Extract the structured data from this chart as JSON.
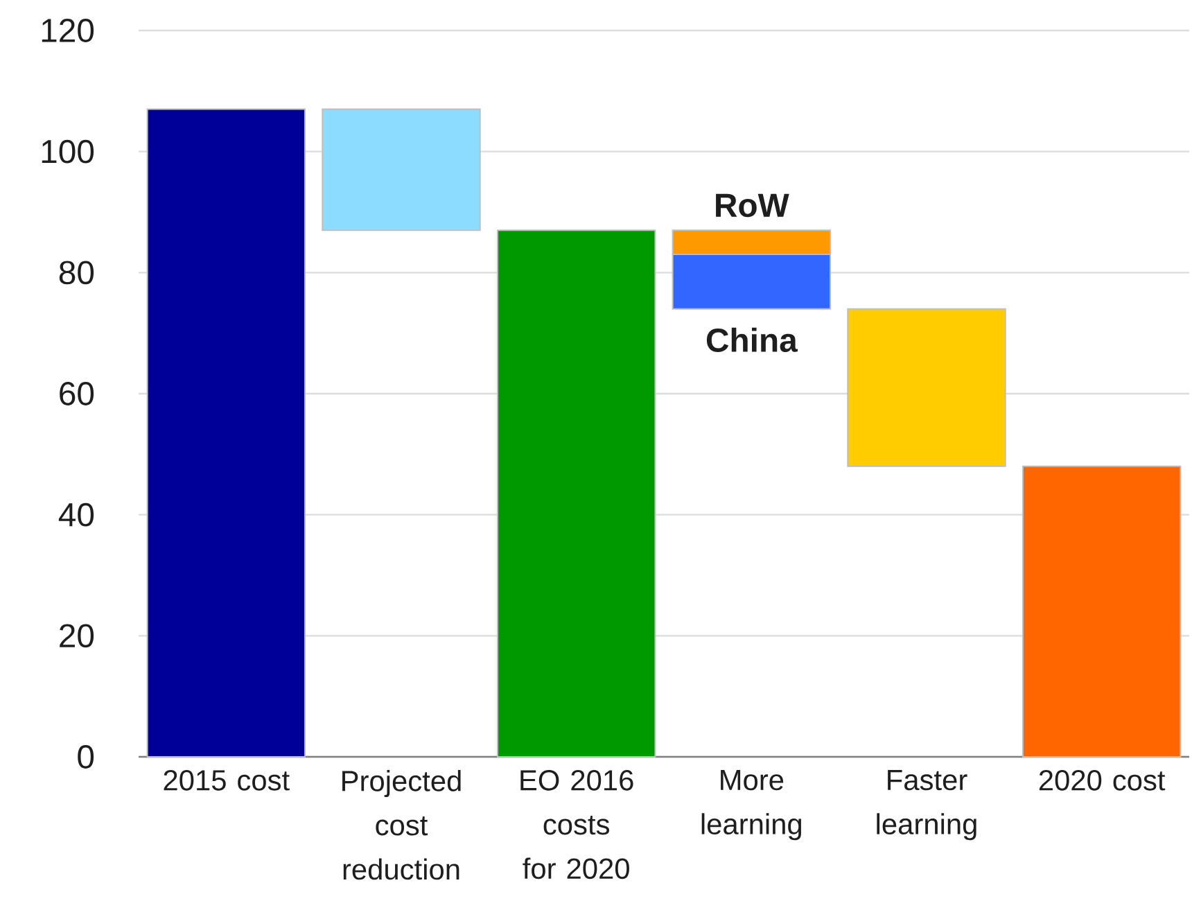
{
  "chart_data": {
    "type": "bar",
    "stacked": true,
    "categories": [
      "2015 cost",
      "Projected cost reduction",
      "EO 2016 costs for 2020",
      "More learning",
      "Faster learning",
      "2020 cost"
    ],
    "series": [
      {
        "values": [
          107,
          20,
          87,
          9,
          26,
          48
        ],
        "base": [
          0,
          87,
          0,
          74,
          48,
          0
        ],
        "colors": [
          "#000099",
          "#8bdcff",
          "#009900",
          "#3366ff",
          "#ffcc00",
          "#ff6600"
        ]
      },
      {
        "values": [
          null,
          null,
          null,
          4,
          null,
          null
        ],
        "color": "#ff9900"
      }
    ],
    "annotations": [
      {
        "text": "RoW",
        "x": "More learning",
        "y": 87
      },
      {
        "text": "China",
        "x": "More learning",
        "y": 74
      }
    ],
    "ylim": [
      0,
      120
    ],
    "yticks": [
      0,
      20,
      40,
      60,
      80,
      100,
      120
    ],
    "grid": "y"
  }
}
